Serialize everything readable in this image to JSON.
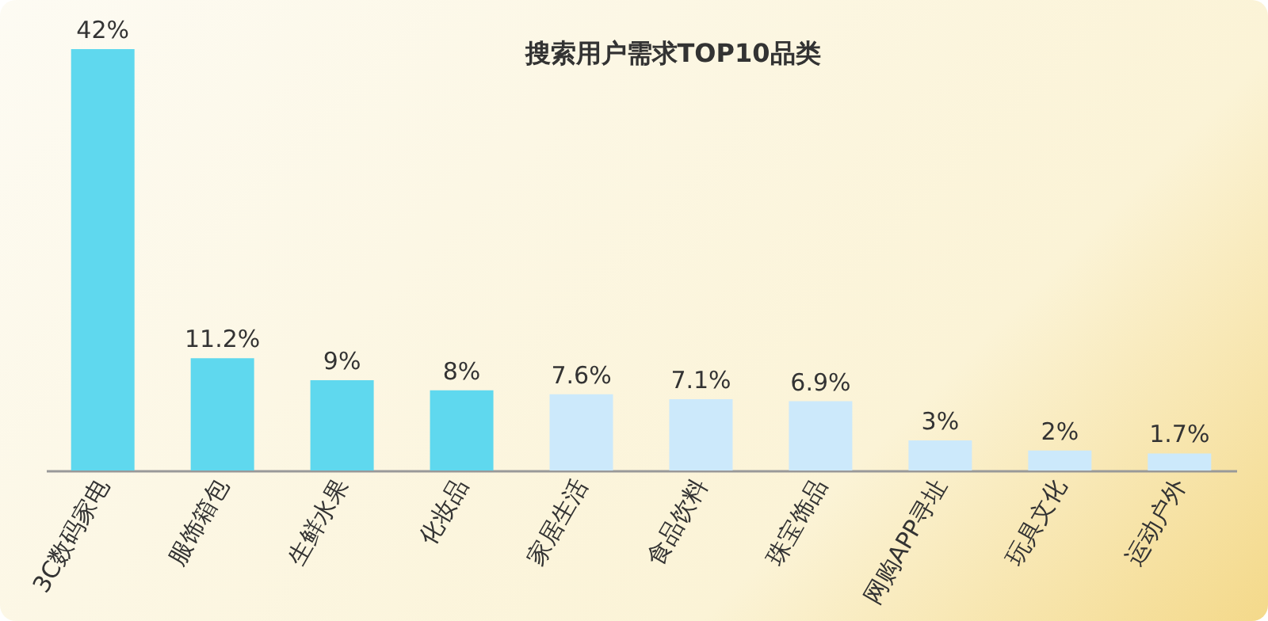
{
  "chart_data": {
    "type": "bar",
    "title": "搜索用户需求TOP10品类",
    "categories": [
      "3C数码家电",
      "服饰箱包",
      "生鲜水果",
      "化妆品",
      "家居生活",
      "食品饮料",
      "珠宝饰品",
      "网购APP寻址",
      "玩具文化",
      "运动户外"
    ],
    "values": [
      42,
      11.2,
      9,
      8,
      7.6,
      7.1,
      6.9,
      3,
      2,
      1.7
    ],
    "value_labels": [
      "42%",
      "11.2%",
      "9%",
      "8%",
      "7.6%",
      "7.1%",
      "6.9%",
      "3%",
      "2%",
      "1.7%"
    ],
    "colors": [
      "#5fd8ee",
      "#5fd8ee",
      "#5fd8ee",
      "#5fd8ee",
      "#cce9fb",
      "#cce9fb",
      "#cce9fb",
      "#cce9fb",
      "#cce9fb",
      "#cce9fb"
    ],
    "grid": false,
    "legend": false
  }
}
